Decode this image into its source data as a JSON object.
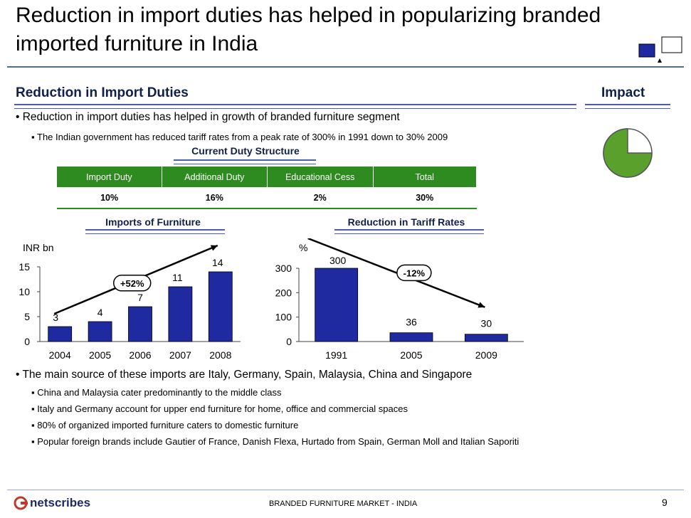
{
  "page": {
    "title": "Reduction in import duties has helped in popularizing branded imported furniture in India",
    "section_left": "Reduction in Import Duties",
    "section_right": "Impact",
    "bullet1": "Reduction in import duties has helped in growth of branded furniture segment",
    "sub1": "The Indian government has reduced tariff rates from a peak rate of 300% in 1991 down to 30% 2009",
    "table_title": "Current Duty Structure",
    "bullet2": "The main source of these imports are Italy, Germany, Spain, Malaysia, China and Singapore",
    "sub2": [
      "China and Malaysia cater predominantly to the middle class",
      "Italy and Germany account for upper end furniture for home, office and commercial spaces",
      "80% of organized imported furniture caters to domestic furniture",
      "Popular foreign brands include Gautier of France, Danish Flexa, Hurtado from Spain, German Moll and Italian Saporiti"
    ],
    "footer_logo": "netscribes",
    "footer_text": "BRANDED FURNITURE MARKET - INDIA",
    "page_number": "9",
    "colors": {
      "bar": "#1f2aa0",
      "table_header": "#2e8b1f",
      "pie_fill": "#5aa02c",
      "accent": "#10204a"
    }
  },
  "duty_table": {
    "headers": [
      "Import Duty",
      "Additional Duty",
      "Educational Cess",
      "Total"
    ],
    "values": [
      "10%",
      "16%",
      "2%",
      "30%"
    ]
  },
  "impact_pie": {
    "filled_fraction": 0.75
  },
  "chart_data": [
    {
      "type": "bar",
      "title": "Imports of Furniture",
      "ylabel": "INR bn",
      "categories": [
        "2004",
        "2005",
        "2006",
        "2007",
        "2008"
      ],
      "values": [
        3,
        4,
        7,
        11,
        14
      ],
      "ylim": [
        0,
        15
      ],
      "yticks": [
        "0",
        "5",
        "10",
        "15"
      ],
      "annotation": "+52%"
    },
    {
      "type": "bar",
      "title": "Reduction in Tariff Rates",
      "ylabel": "%",
      "categories": [
        "1991",
        "2005",
        "2009"
      ],
      "values": [
        300,
        36,
        30
      ],
      "ylim": [
        0,
        300
      ],
      "yticks": [
        "0",
        "100",
        "200",
        "300"
      ],
      "annotation": "-12%"
    }
  ]
}
